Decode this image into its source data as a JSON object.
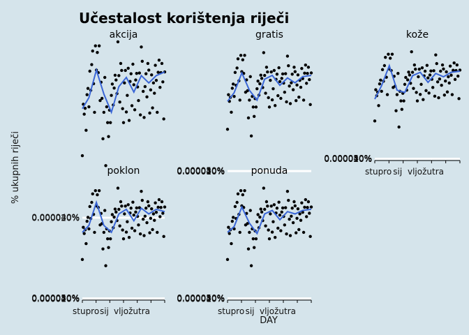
{
  "chart_data": {
    "type": "scatter",
    "title": "Učestalost korištenja riječi",
    "xlabel": "DAY",
    "ylabel": "% ukupnih riječi",
    "x_tick_labels": [
      "stupro",
      "sij",
      "vljožutra"
    ],
    "y_ticks": [
      "0.000010%",
      "0.000020%",
      "0.000030%",
      "0.000040%",
      "0.000050%"
    ],
    "trend_color": "#3a66d6",
    "point_color": "#000000",
    "background": "#d5e4eb",
    "panels": [
      {
        "name": "akcija",
        "ylim": [
          1.55e-05,
          4.78e-05
        ],
        "y_ticks": [
          "0.000020%",
          "0.000030%",
          "0.000040%"
        ],
        "trend": [
          [
            1,
            3e-05
          ],
          [
            8,
            3.3e-05
          ],
          [
            16,
            4.05e-05
          ],
          [
            24,
            3.4e-05
          ],
          [
            32,
            2.9e-05
          ],
          [
            40,
            3.6e-05
          ],
          [
            48,
            3.85e-05
          ],
          [
            56,
            3.45e-05
          ],
          [
            64,
            3.9e-05
          ],
          [
            72,
            3.7e-05
          ],
          [
            80,
            3.9e-05
          ],
          [
            89,
            4e-05
          ]
        ]
      },
      {
        "name": "gratis",
        "ylim": [
          4e-06,
          5.2e-05
        ],
        "y_ticks": [
          "0.000010%",
          "0.000020%",
          "0.000030%",
          "0.000040%",
          "0.000050%"
        ],
        "trend": [
          [
            1,
            2.85e-05
          ],
          [
            8,
            3.2e-05
          ],
          [
            16,
            4e-05
          ],
          [
            24,
            3.3e-05
          ],
          [
            32,
            2.9e-05
          ],
          [
            40,
            3.75e-05
          ],
          [
            48,
            3.9e-05
          ],
          [
            56,
            3.5e-05
          ],
          [
            64,
            3.8e-05
          ],
          [
            72,
            3.6e-05
          ],
          [
            80,
            3.85e-05
          ],
          [
            89,
            3.9e-05
          ]
        ]
      },
      {
        "name": "kože",
        "ylim": [
          2e-06,
          5.2e-05
        ],
        "y_ticks": [
          "0.000010%",
          "0.000020%",
          "0.000030%",
          "0.000040%",
          "0.000050%"
        ],
        "trend": [
          [
            1,
            2.7e-05
          ],
          [
            8,
            3.3e-05
          ],
          [
            16,
            4.2e-05
          ],
          [
            24,
            3.1e-05
          ],
          [
            32,
            3e-05
          ],
          [
            40,
            3.75e-05
          ],
          [
            48,
            3.9e-05
          ],
          [
            56,
            3.45e-05
          ],
          [
            64,
            3.85e-05
          ],
          [
            72,
            3.7e-05
          ],
          [
            80,
            3.9e-05
          ],
          [
            89,
            3.95e-05
          ]
        ]
      },
      {
        "name": "poklon",
        "ylim": [
          2e-06,
          5.2e-05
        ],
        "y_ticks": [
          "0.000010%",
          "0.000020%",
          "0.000030%",
          "0.000040%",
          "0.000050%"
        ],
        "trend": [
          [
            1,
            2.9e-05
          ],
          [
            8,
            3.2e-05
          ],
          [
            16,
            4.2e-05
          ],
          [
            24,
            3.2e-05
          ],
          [
            32,
            2.9e-05
          ],
          [
            40,
            3.7e-05
          ],
          [
            48,
            3.9e-05
          ],
          [
            56,
            3.4e-05
          ],
          [
            64,
            3.95e-05
          ],
          [
            72,
            3.7e-05
          ],
          [
            80,
            3.9e-05
          ],
          [
            89,
            3.8e-05
          ]
        ]
      },
      {
        "name": "ponuda",
        "ylim": [
          2e-06,
          5.2e-05
        ],
        "y_ticks": [
          "0.000010%",
          "0.000020%",
          "0.000030%",
          "0.000040%",
          "0.000050%"
        ],
        "trend": [
          [
            1,
            2.9e-05
          ],
          [
            8,
            3.15e-05
          ],
          [
            16,
            4e-05
          ],
          [
            24,
            3.3e-05
          ],
          [
            32,
            2.85e-05
          ],
          [
            40,
            3.7e-05
          ],
          [
            48,
            3.85e-05
          ],
          [
            56,
            3.45e-05
          ],
          [
            64,
            3.8e-05
          ],
          [
            72,
            3.7e-05
          ],
          [
            80,
            3.85e-05
          ],
          [
            89,
            3.9e-05
          ]
        ]
      }
    ],
    "points": [
      1.72e-05,
      3.12e-05,
      2.85e-05,
      3.01e-05,
      2.41e-05,
      3.38e-05,
      3.55e-05,
      3.05e-05,
      4.02e-05,
      3.5e-05,
      4.2e-05,
      4.57e-05,
      3.68e-05,
      2.9e-05,
      4.71e-05,
      4.05e-05,
      4.53e-05,
      3.98e-05,
      4.71e-05,
      3.22e-05,
      3.72e-05,
      3.28e-05,
      2.18e-05,
      2.9e-05,
      3.85e-05,
      1.45e-05,
      3.05e-05,
      2.62e-05,
      2.24e-05,
      2.96e-05,
      2.62e-05,
      3.36e-05,
      3.67e-05,
      3.1e-05,
      3.56e-05,
      3.91e-05,
      3.78e-05,
      3.41e-05,
      4.82e-05,
      3.9e-05,
      3.18e-05,
      4.23e-05,
      4.04e-05,
      3e-05,
      2.62e-05,
      3.7e-05,
      4.04e-05,
      2.91e-05,
      3.36e-05,
      4.1e-05,
      2.68e-05,
      3.74e-05,
      3.95e-05,
      3.08e-05,
      4.21e-05,
      3.65e-05,
      2.97e-05,
      3.78e-05,
      3.96e-05,
      3.59e-05,
      3.22e-05,
      3.97e-05,
      2.83e-05,
      4.68e-05,
      4.29e-05,
      3.47e-05,
      2.76e-05,
      3.6e-05,
      3.95e-05,
      3.32e-05,
      4.23e-05,
      4.05e-05,
      2.88e-05,
      3.51e-05,
      3.92e-05,
      3.02e-05,
      3.7e-05,
      3.42e-05,
      4.18e-05,
      3.77e-05,
      2.9e-05,
      3.99e-05,
      4.32e-05,
      3.58e-05,
      3.98e-05,
      4.23e-05,
      3.73e-05,
      2.72e-05,
      4e-05
    ]
  }
}
